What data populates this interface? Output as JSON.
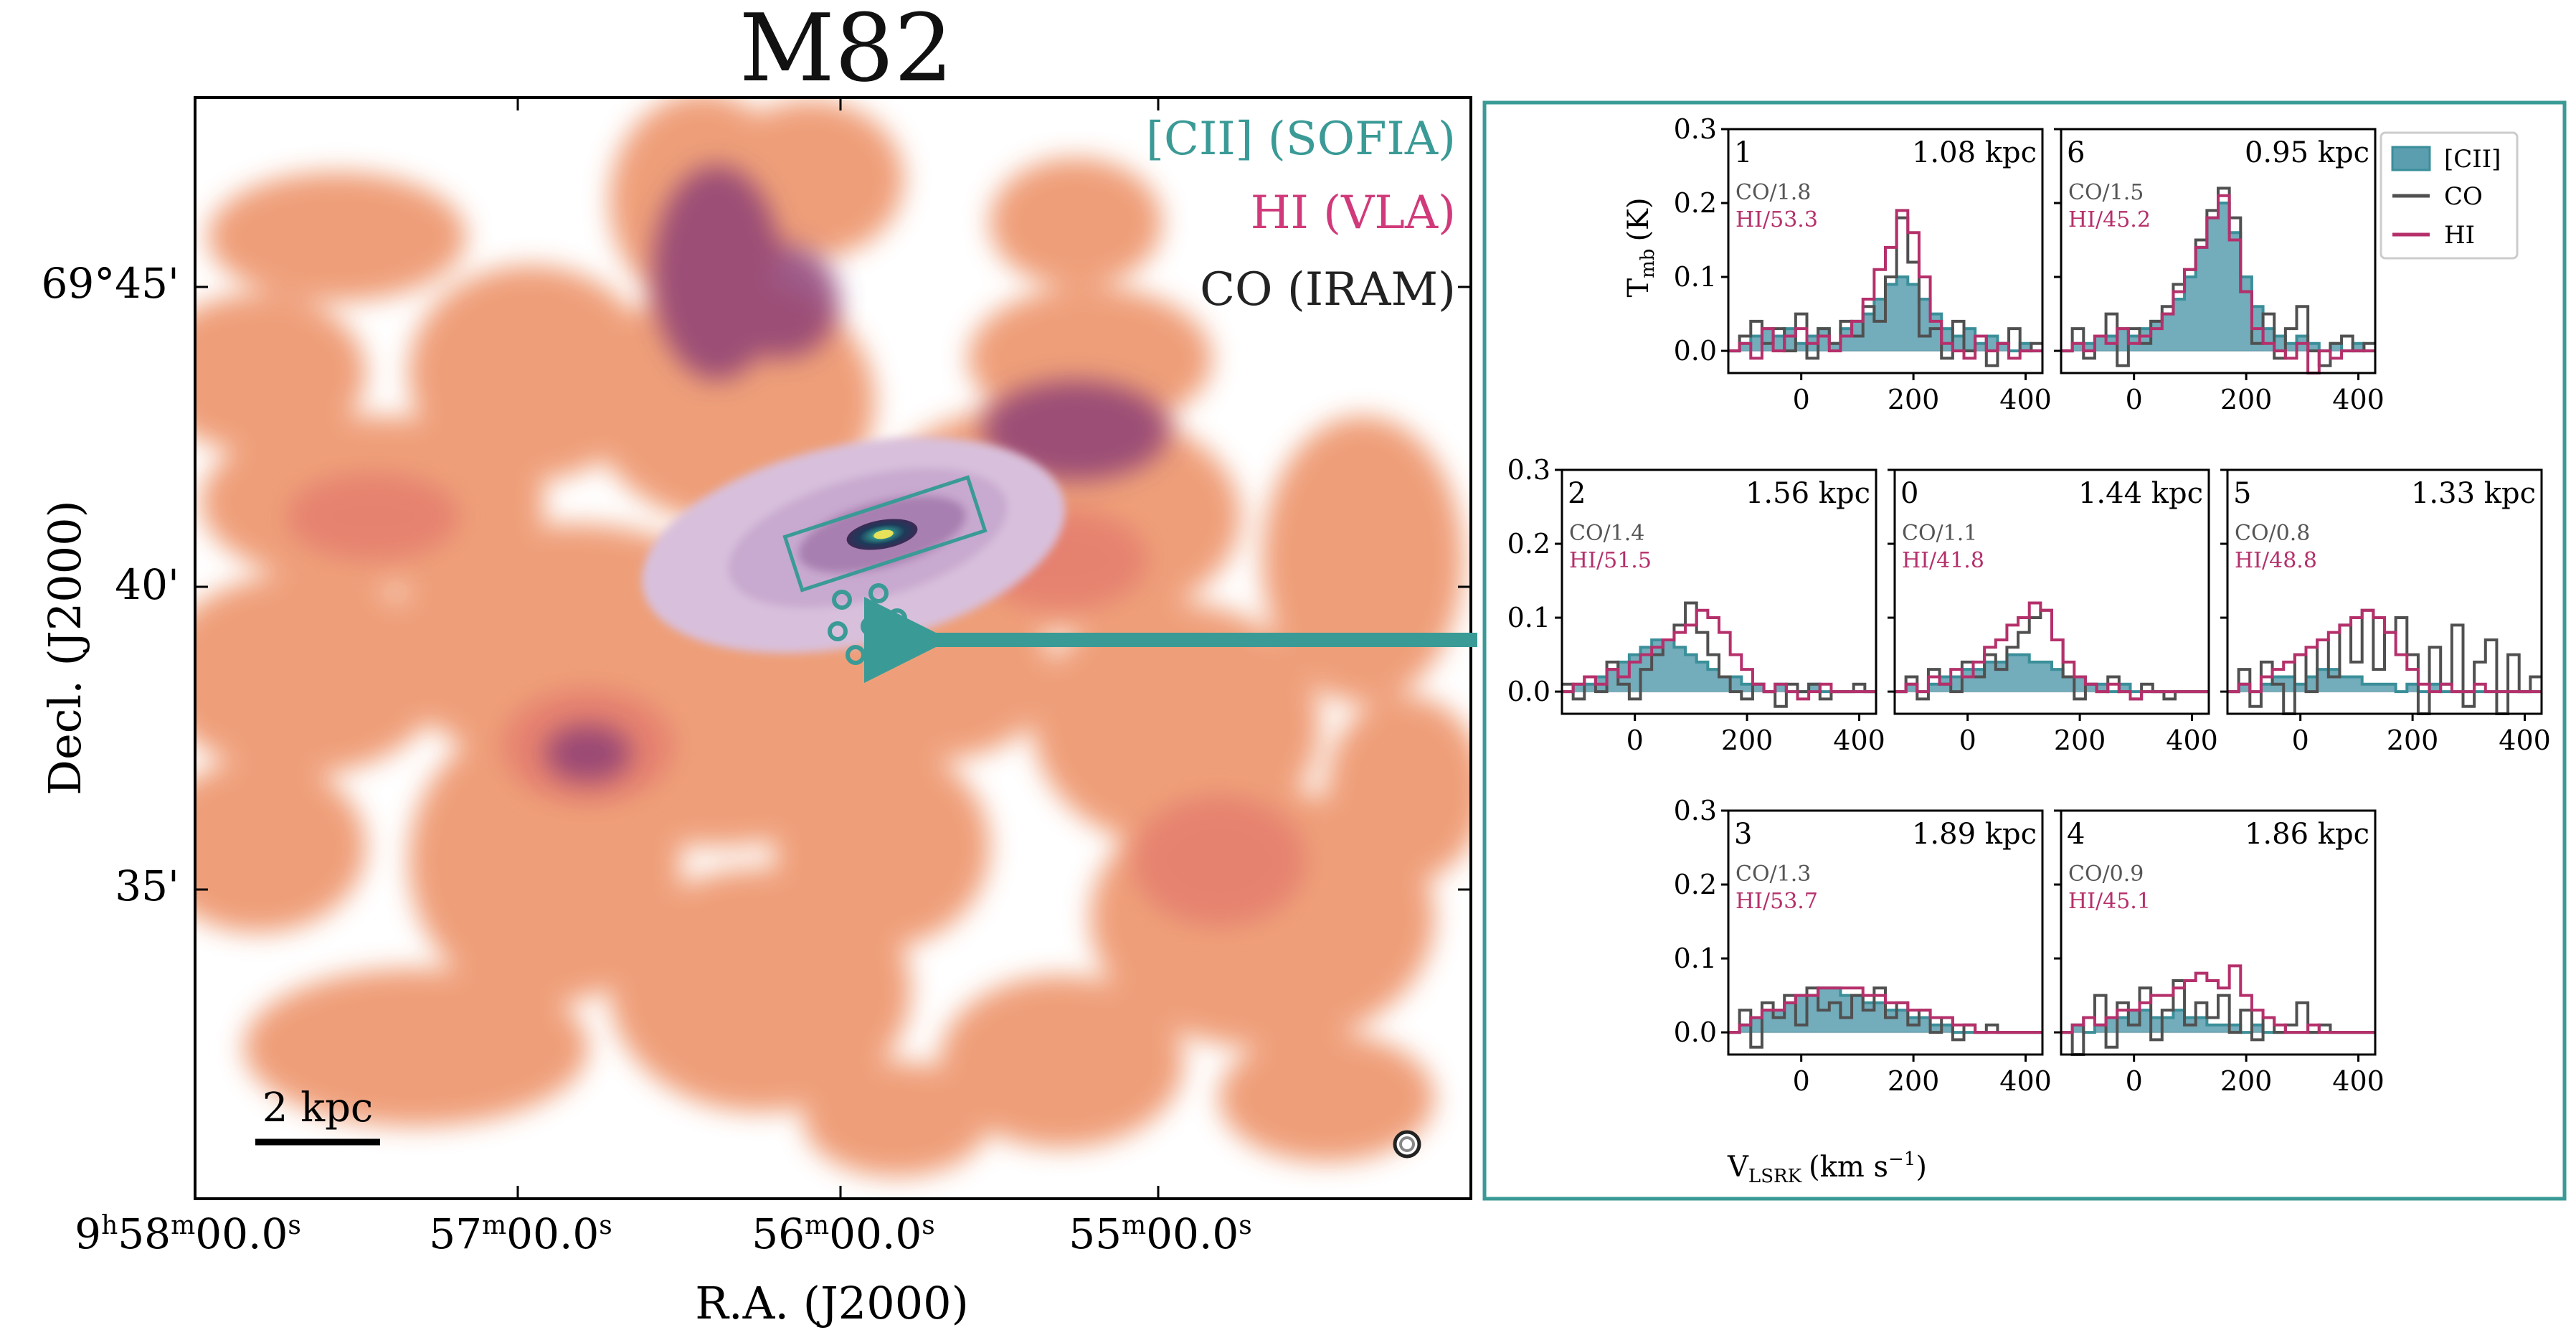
{
  "title": "M82",
  "map": {
    "legend": [
      {
        "label": "[CII] (SOFIA)",
        "color": "#3a9a96"
      },
      {
        "label": "HI (VLA)",
        "color": "#d03a7a"
      },
      {
        "label": "CO (IRAM)",
        "color": "#222222"
      }
    ],
    "xlabel": "R.A. (J2000)",
    "ylabel": "Decl. (J2000)",
    "xticks": [
      {
        "h": "9",
        "m": "58",
        "s": "00.0"
      },
      {
        "h": "",
        "m": "57",
        "s": "00.0"
      },
      {
        "h": "",
        "m": "56",
        "s": "00.0"
      },
      {
        "h": "",
        "m": "55",
        "s": "00.0"
      }
    ],
    "yticks": [
      "69°45'",
      "40'",
      "35'"
    ],
    "scalebar_label": "2 kpc"
  },
  "colors": {
    "cii": "#3a8f99",
    "cii_fill": "#5b9eaf",
    "co": "#505050",
    "hi": "#b5306b",
    "panel_frame": "#3a9a96",
    "map_orange": "#ee9a72",
    "map_purple": "#6c2d67"
  },
  "chart_data": {
    "type": "line",
    "drawstyle": "steps",
    "xlabel_main": "V",
    "xlabel_sub": "LSRK",
    "xlabel_unit": "(km s",
    "xlabel_exp": "−1",
    "xlabel_close": ")",
    "ylabel_main": "T",
    "ylabel_sub": "mb",
    "ylabel_unit": "(K)",
    "xlim": [
      -130,
      430
    ],
    "ylim": [
      -0.03,
      0.3
    ],
    "xticks": [
      "0",
      "200",
      "400"
    ],
    "yticks": [
      "0.0",
      "0.1",
      "0.2",
      "0.3"
    ],
    "legend": [
      {
        "label": "[CII]",
        "style": "filled step"
      },
      {
        "label": "CO",
        "style": "step"
      },
      {
        "label": "HI",
        "style": "step"
      }
    ],
    "velocity": [
      -120,
      -100,
      -80,
      -60,
      -40,
      -20,
      0,
      20,
      40,
      60,
      80,
      100,
      120,
      140,
      160,
      180,
      200,
      220,
      240,
      260,
      280,
      300,
      320,
      340,
      360,
      380,
      400,
      420
    ],
    "panels": [
      {
        "id": "1",
        "dist": "1.08 kpc",
        "co_scale": "CO/1.8",
        "hi_scale": "HI/53.3",
        "cii": [
          0.0,
          0.01,
          0.02,
          0.03,
          0.02,
          0.03,
          0.01,
          0.02,
          0.03,
          0.01,
          0.03,
          0.04,
          0.05,
          0.07,
          0.09,
          0.1,
          0.09,
          0.07,
          0.05,
          0.03,
          0.02,
          0.03,
          0.01,
          0.02,
          0.01,
          0.0,
          0.01,
          0.0
        ],
        "co": [
          0.0,
          0.02,
          0.04,
          0.01,
          0.03,
          0.0,
          0.05,
          -0.01,
          0.03,
          0.01,
          0.04,
          0.02,
          0.06,
          0.04,
          0.1,
          0.18,
          0.12,
          0.02,
          0.03,
          -0.01,
          0.04,
          0.0,
          0.02,
          -0.02,
          0.01,
          0.03,
          0.0,
          0.01
        ],
        "hi": [
          0.0,
          0.01,
          -0.01,
          0.03,
          0.0,
          0.02,
          0.03,
          0.01,
          0.02,
          0.0,
          0.02,
          0.04,
          0.07,
          0.11,
          0.14,
          0.19,
          0.16,
          0.1,
          0.04,
          0.01,
          0.0,
          -0.01,
          0.02,
          0.0,
          0.01,
          -0.01,
          0.0,
          0.0
        ]
      },
      {
        "id": "6",
        "dist": "0.95 kpc",
        "co_scale": "CO/1.5",
        "hi_scale": "HI/45.2",
        "cii": [
          0.0,
          0.01,
          0.01,
          0.02,
          0.02,
          0.03,
          0.02,
          0.03,
          0.04,
          0.05,
          0.07,
          0.1,
          0.14,
          0.18,
          0.2,
          0.16,
          0.1,
          0.06,
          0.03,
          0.02,
          0.01,
          0.02,
          0.01,
          0.0,
          0.01,
          0.0,
          0.01,
          0.0
        ],
        "co": [
          0.0,
          0.03,
          -0.01,
          0.02,
          0.05,
          -0.02,
          0.03,
          0.01,
          0.04,
          0.06,
          0.09,
          0.11,
          0.15,
          0.19,
          0.22,
          0.18,
          0.08,
          0.01,
          0.05,
          -0.01,
          0.03,
          0.06,
          0.0,
          -0.02,
          0.01,
          0.02,
          0.0,
          0.01
        ],
        "hi": [
          0.0,
          0.01,
          0.0,
          0.02,
          0.01,
          0.03,
          0.01,
          0.02,
          0.03,
          0.05,
          0.08,
          0.11,
          0.14,
          0.18,
          0.21,
          0.15,
          0.08,
          0.03,
          0.01,
          0.0,
          -0.01,
          0.01,
          -0.03,
          0.0,
          -0.01,
          0.0,
          0.0,
          0.0
        ]
      },
      {
        "id": "2",
        "dist": "1.56 kpc",
        "co_scale": "CO/1.4",
        "hi_scale": "HI/51.5",
        "cii": [
          0.0,
          0.01,
          0.01,
          0.02,
          0.03,
          0.04,
          0.05,
          0.06,
          0.07,
          0.07,
          0.06,
          0.05,
          0.04,
          0.03,
          0.02,
          0.02,
          0.01,
          0.01,
          0.0,
          0.01,
          0.0,
          0.0,
          0.01,
          0.0,
          0.0,
          0.0,
          0.0,
          0.0
        ],
        "co": [
          0.01,
          -0.01,
          0.02,
          0.0,
          0.04,
          0.01,
          -0.01,
          0.03,
          0.05,
          0.07,
          0.09,
          0.12,
          0.08,
          0.05,
          0.02,
          0.0,
          -0.01,
          0.01,
          0.0,
          -0.02,
          0.01,
          0.0,
          0.01,
          -0.01,
          0.0,
          0.0,
          0.01,
          0.0
        ],
        "hi": [
          0.0,
          0.01,
          0.02,
          0.01,
          0.03,
          0.02,
          0.04,
          0.05,
          0.06,
          0.07,
          0.08,
          0.09,
          0.11,
          0.1,
          0.08,
          0.05,
          0.03,
          0.01,
          0.0,
          0.01,
          0.0,
          -0.01,
          0.0,
          0.01,
          0.0,
          0.0,
          0.0,
          0.0
        ]
      },
      {
        "id": "0",
        "dist": "1.44 kpc",
        "co_scale": "CO/1.1",
        "hi_scale": "HI/41.8",
        "cii": [
          0.0,
          0.01,
          0.0,
          0.01,
          0.02,
          0.02,
          0.03,
          0.03,
          0.04,
          0.04,
          0.05,
          0.05,
          0.04,
          0.04,
          0.03,
          0.02,
          0.02,
          0.01,
          0.01,
          0.0,
          0.01,
          0.0,
          0.0,
          0.0,
          0.0,
          0.0,
          0.0,
          0.0
        ],
        "co": [
          0.0,
          0.02,
          -0.01,
          0.03,
          0.01,
          0.0,
          0.04,
          0.02,
          0.05,
          0.03,
          0.06,
          0.08,
          0.1,
          0.11,
          0.07,
          0.02,
          -0.01,
          0.01,
          0.0,
          0.02,
          0.0,
          -0.01,
          0.01,
          0.0,
          -0.01,
          0.0,
          0.0,
          0.0
        ],
        "hi": [
          0.0,
          0.01,
          0.0,
          0.02,
          0.01,
          0.03,
          0.02,
          0.04,
          0.06,
          0.07,
          0.09,
          0.1,
          0.12,
          0.11,
          0.07,
          0.04,
          0.02,
          0.01,
          0.0,
          0.01,
          0.0,
          -0.01,
          0.0,
          0.0,
          0.0,
          0.0,
          0.0,
          0.0
        ]
      },
      {
        "id": "5",
        "dist": "1.33 kpc",
        "co_scale": "CO/0.8",
        "hi_scale": "HI/48.8",
        "cii": [
          0.0,
          0.01,
          0.0,
          0.01,
          0.02,
          0.02,
          0.01,
          0.02,
          0.03,
          0.03,
          0.02,
          0.02,
          0.01,
          0.01,
          0.01,
          0.0,
          0.01,
          0.0,
          0.01,
          0.0,
          0.0,
          0.0,
          0.0,
          0.0,
          0.0,
          0.0,
          0.0,
          0.0
        ],
        "co": [
          0.0,
          0.03,
          -0.02,
          0.04,
          0.01,
          -0.03,
          0.05,
          0.0,
          0.07,
          0.02,
          0.09,
          0.04,
          0.11,
          0.03,
          0.08,
          0.1,
          0.05,
          -0.03,
          0.06,
          0.01,
          0.09,
          -0.02,
          0.04,
          0.07,
          -0.03,
          0.05,
          0.0,
          0.02
        ],
        "hi": [
          0.0,
          0.01,
          0.0,
          0.02,
          0.03,
          0.04,
          0.05,
          0.06,
          0.07,
          0.08,
          0.09,
          0.1,
          0.11,
          0.1,
          0.08,
          0.05,
          0.03,
          0.01,
          0.0,
          0.01,
          0.0,
          0.0,
          0.01,
          0.0,
          0.0,
          0.0,
          0.0,
          0.0
        ]
      },
      {
        "id": "3",
        "dist": "1.89 kpc",
        "co_scale": "CO/1.3",
        "hi_scale": "HI/53.7",
        "cii": [
          0.0,
          0.01,
          0.02,
          0.03,
          0.03,
          0.04,
          0.05,
          0.05,
          0.06,
          0.06,
          0.05,
          0.05,
          0.04,
          0.04,
          0.03,
          0.03,
          0.02,
          0.02,
          0.01,
          0.01,
          0.0,
          0.0,
          0.0,
          0.0,
          0.0,
          0.0,
          0.0,
          0.0
        ],
        "co": [
          0.0,
          0.03,
          -0.02,
          0.04,
          0.02,
          0.05,
          0.01,
          0.06,
          0.03,
          0.04,
          0.02,
          0.05,
          0.03,
          0.06,
          0.02,
          0.04,
          0.01,
          0.03,
          0.0,
          0.02,
          -0.01,
          0.01,
          0.0,
          0.01,
          0.0,
          0.0,
          0.0,
          0.0
        ],
        "hi": [
          0.0,
          0.01,
          0.02,
          0.03,
          0.03,
          0.04,
          0.05,
          0.05,
          0.06,
          0.06,
          0.06,
          0.06,
          0.05,
          0.05,
          0.04,
          0.04,
          0.03,
          0.03,
          0.02,
          0.02,
          0.01,
          0.01,
          0.0,
          0.0,
          0.0,
          0.0,
          0.0,
          0.0
        ]
      },
      {
        "id": "4",
        "dist": "1.86 kpc",
        "co_scale": "CO/0.9",
        "hi_scale": "HI/45.1",
        "cii": [
          0.0,
          0.01,
          0.0,
          0.01,
          0.02,
          0.02,
          0.03,
          0.03,
          0.02,
          0.02,
          0.03,
          0.02,
          0.02,
          0.01,
          0.01,
          0.01,
          0.0,
          0.01,
          0.0,
          0.0,
          0.0,
          0.0,
          0.0,
          0.0,
          0.0,
          0.0,
          0.0,
          0.0
        ],
        "co": [
          0.0,
          -0.03,
          0.02,
          0.05,
          -0.02,
          0.04,
          0.01,
          0.06,
          -0.01,
          0.03,
          0.07,
          0.01,
          0.04,
          0.02,
          0.05,
          0.0,
          0.03,
          -0.01,
          0.02,
          0.0,
          0.01,
          0.04,
          0.0,
          0.01,
          0.0,
          0.0,
          0.0,
          0.0
        ],
        "hi": [
          0.0,
          0.01,
          0.02,
          0.01,
          0.02,
          0.03,
          0.03,
          0.04,
          0.05,
          0.05,
          0.06,
          0.07,
          0.08,
          0.07,
          0.06,
          0.09,
          0.05,
          0.03,
          0.02,
          0.01,
          0.0,
          0.0,
          0.01,
          0.0,
          0.0,
          0.0,
          0.0,
          0.0
        ]
      }
    ]
  }
}
